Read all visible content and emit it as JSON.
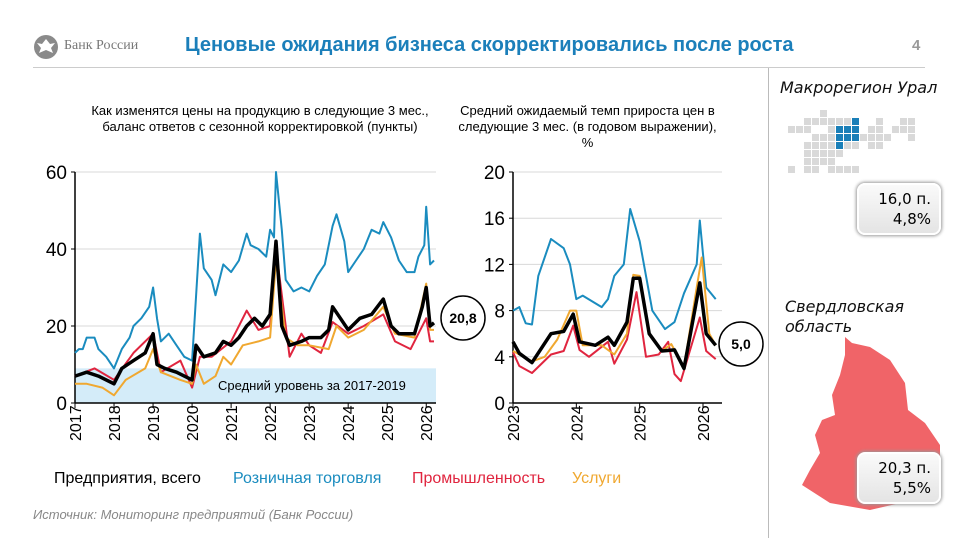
{
  "header": {
    "logo": "Банк России",
    "title": "Ценовые ожидания бизнеса скорректировались после роста",
    "page": "4"
  },
  "colors": {
    "total": "#000000",
    "retail": "#1a8cbf",
    "industry": "#e0253f",
    "services": "#f0a830",
    "band": "#d4ecf9",
    "title": "#1b7fba"
  },
  "legend": [
    {
      "label": "Предприятия, всего",
      "color": "#000000"
    },
    {
      "label": "Розничная торговля",
      "color": "#1a8cbf"
    },
    {
      "label": "Промышленность",
      "color": "#e0253f"
    },
    {
      "label": "Услуги",
      "color": "#f0a830"
    }
  ],
  "source": "Источник: Мониторинг предприятий (Банк России)",
  "regions": {
    "macro": {
      "label": "Макрорегион Урал",
      "points": "16,0 п.",
      "percent": "4,8%"
    },
    "oblast": {
      "label": "Свердловская область",
      "points": "20,3 п.",
      "percent": "5,5%"
    }
  },
  "chart_data": [
    {
      "type": "line",
      "title": "Как изменятся цены на продукцию в следующие 3 мес., баланс ответов с сезонной корректировкой (пункты)",
      "ylim": [
        0,
        60
      ],
      "yticks": [
        "0",
        "20",
        "40",
        "60"
      ],
      "xlim": [
        2017,
        2026.25
      ],
      "xticks": [
        "2017",
        "2018",
        "2019",
        "2020",
        "2021",
        "2022",
        "2023",
        "2024",
        "2025",
        "2026"
      ],
      "grid": true,
      "band": {
        "label": "Средний уровень за 2017-2019",
        "from": 0,
        "to": 9
      },
      "callout": "20,8",
      "series": [
        {
          "name": "Розничная торговля",
          "key": "retail",
          "x": [
            2017,
            2017.1,
            2017.2,
            2017.3,
            2017.5,
            2017.6,
            2017.8,
            2018,
            2018.2,
            2018.4,
            2018.5,
            2018.7,
            2018.9,
            2019,
            2019.1,
            2019.2,
            2019.4,
            2019.6,
            2019.8,
            2020,
            2020.2,
            2020.3,
            2020.5,
            2020.6,
            2020.8,
            2021,
            2021.2,
            2021.4,
            2021.5,
            2021.7,
            2021.9,
            2022,
            2022.1,
            2022.15,
            2022.3,
            2022.4,
            2022.6,
            2022.8,
            2023,
            2023.2,
            2023.4,
            2023.6,
            2023.7,
            2023.9,
            2024,
            2024.2,
            2024.4,
            2024.6,
            2024.8,
            2024.9,
            2025.1,
            2025.3,
            2025.5,
            2025.7,
            2025.8,
            2025.95,
            2026,
            2026.1,
            2026.2
          ],
          "y": [
            13,
            14,
            14,
            17,
            17,
            14,
            12,
            9,
            14,
            17,
            20,
            22,
            25,
            30,
            22,
            16,
            18,
            15,
            12,
            11,
            44,
            35,
            32,
            28,
            36,
            34,
            37,
            44,
            41,
            40,
            38,
            45,
            43,
            60,
            45,
            32,
            29,
            30,
            29,
            33,
            36,
            46,
            49,
            42,
            34,
            37,
            40,
            45,
            44,
            47,
            43,
            37,
            34,
            34,
            38,
            41,
            51,
            36,
            37
          ]
        },
        {
          "name": "Промышленность",
          "key": "industry",
          "x": [
            2017,
            2017.5,
            2018,
            2018.5,
            2019,
            2019.2,
            2019.7,
            2020,
            2020.2,
            2020.5,
            2021,
            2021.4,
            2021.7,
            2022,
            2022.15,
            2022.5,
            2022.8,
            2023,
            2023.3,
            2023.6,
            2024,
            2024.4,
            2024.9,
            2025.2,
            2025.6,
            2026,
            2026.1,
            2026.2
          ],
          "y": [
            7,
            9,
            6,
            13,
            18,
            8,
            11,
            4,
            12,
            12,
            16,
            24,
            19,
            20,
            40,
            12,
            18,
            15,
            13,
            21,
            18,
            20,
            23,
            16,
            14,
            22,
            16,
            16
          ]
        },
        {
          "name": "Услуги",
          "key": "services",
          "x": [
            2017,
            2017.3,
            2017.7,
            2018,
            2018.3,
            2018.8,
            2019,
            2019.2,
            2019.7,
            2020,
            2020.1,
            2020.3,
            2020.6,
            2020.8,
            2021,
            2021.3,
            2021.7,
            2022,
            2022.15,
            2022.4,
            2022.7,
            2023,
            2023.5,
            2023.7,
            2024,
            2024.4,
            2024.9,
            2025.2,
            2025.7,
            2026,
            2026.1,
            2026.2
          ],
          "y": [
            5,
            5,
            4,
            2,
            6,
            9,
            14,
            8,
            6,
            5,
            10,
            5,
            7,
            12,
            10,
            15,
            16,
            17,
            37,
            17,
            15,
            15,
            14,
            20,
            17,
            19,
            25,
            18,
            17,
            31,
            19,
            19
          ]
        },
        {
          "name": "Предприятия, всего",
          "key": "total",
          "x": [
            2017,
            2017.3,
            2017.6,
            2018,
            2018.2,
            2018.5,
            2018.8,
            2019,
            2019.1,
            2019.3,
            2019.6,
            2020,
            2020.1,
            2020.3,
            2020.6,
            2020.8,
            2021,
            2021.2,
            2021.4,
            2021.6,
            2021.8,
            2022,
            2022.15,
            2022.3,
            2022.5,
            2022.8,
            2023,
            2023.3,
            2023.5,
            2023.6,
            2023.8,
            2024,
            2024.3,
            2024.6,
            2024.9,
            2025.1,
            2025.3,
            2025.7,
            2025.9,
            2026,
            2026.1,
            2026.2
          ],
          "y": [
            7,
            8,
            7,
            5,
            9,
            11,
            13,
            18,
            10,
            9,
            8,
            6,
            15,
            12,
            13,
            16,
            15,
            17,
            20,
            22,
            20,
            23,
            42,
            20,
            15,
            16,
            17,
            17,
            19,
            25,
            22,
            19,
            22,
            23,
            27,
            20,
            18,
            18,
            25,
            30,
            20,
            20.8
          ]
        }
      ]
    },
    {
      "type": "line",
      "title": "Средний ожидаемый темп прироста цен в следующие 3 мес. (в годовом выражении), %",
      "ylim": [
        0,
        20
      ],
      "yticks": [
        "0",
        "4",
        "8",
        "12",
        "16",
        "20"
      ],
      "xlim": [
        2023,
        2026.3
      ],
      "xticks": [
        "2023",
        "2024",
        "2025",
        "2026"
      ],
      "grid": true,
      "callout": "5,0",
      "series": [
        {
          "name": "Розничная торговля",
          "key": "retail",
          "x": [
            2023,
            2023.1,
            2023.2,
            2023.3,
            2023.4,
            2023.6,
            2023.8,
            2023.9,
            2024,
            2024.1,
            2024.4,
            2024.5,
            2024.6,
            2024.75,
            2024.85,
            2025,
            2025.2,
            2025.4,
            2025.55,
            2025.7,
            2025.9,
            2025.95,
            2026.05,
            2026.2
          ],
          "y": [
            8,
            8.3,
            6.9,
            6.8,
            11,
            14.2,
            13.4,
            12,
            9,
            9.3,
            8.3,
            9,
            11,
            12,
            16.8,
            14,
            8,
            6.4,
            7,
            9.5,
            12,
            15.8,
            10,
            9
          ]
        },
        {
          "name": "Промышленность",
          "key": "industry",
          "x": [
            2023,
            2023.1,
            2023.3,
            2023.6,
            2023.8,
            2023.95,
            2024.05,
            2024.2,
            2024.5,
            2024.6,
            2024.8,
            2024.95,
            2025.1,
            2025.3,
            2025.45,
            2025.55,
            2025.65,
            2025.95,
            2026.05,
            2026.2
          ],
          "y": [
            4.4,
            3.2,
            2.6,
            4.2,
            4.5,
            6.7,
            4.6,
            4,
            5.3,
            3.4,
            5.5,
            9.6,
            4,
            4.2,
            5.3,
            2.5,
            1.9,
            7.4,
            4.5,
            3.8
          ]
        },
        {
          "name": "Услуги",
          "key": "services",
          "x": [
            2023,
            2023.3,
            2023.5,
            2023.7,
            2023.9,
            2024,
            2024.1,
            2024.4,
            2024.6,
            2024.8,
            2024.9,
            2025,
            2025.15,
            2025.35,
            2025.5,
            2025.7,
            2025.9,
            2025.98,
            2026.1,
            2026.2
          ],
          "y": [
            4.5,
            3.6,
            4,
            5.5,
            8,
            8,
            5,
            5,
            4.2,
            6,
            11.1,
            11,
            6,
            4.5,
            5.1,
            3.1,
            10,
            12.6,
            6,
            5
          ]
        },
        {
          "name": "Предприятия, всего",
          "key": "total",
          "x": [
            2023,
            2023.1,
            2023.3,
            2023.6,
            2023.8,
            2023.95,
            2024.05,
            2024.3,
            2024.5,
            2024.6,
            2024.8,
            2024.9,
            2025,
            2025.15,
            2025.35,
            2025.55,
            2025.7,
            2025.95,
            2026.05,
            2026.2
          ],
          "y": [
            5.3,
            4.3,
            3.5,
            6,
            6.2,
            7.7,
            5.3,
            5,
            5.7,
            5,
            7,
            10.8,
            10.8,
            6,
            4.5,
            4.6,
            3,
            10.4,
            6,
            5
          ]
        }
      ]
    }
  ]
}
